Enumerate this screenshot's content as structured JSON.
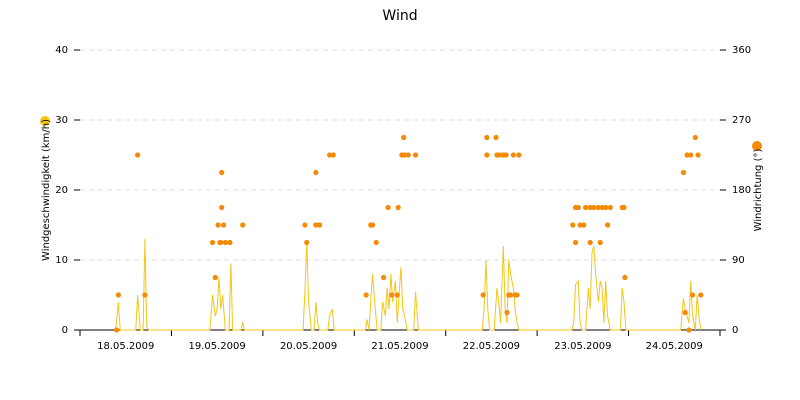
{
  "chart_data": {
    "type": "line-scatter",
    "title": "Wind",
    "xlim": [
      0,
      7
    ],
    "xticks": [
      {
        "value": 0.5,
        "label": "18.05.2009"
      },
      {
        "value": 1.5,
        "label": "19.05.2009"
      },
      {
        "value": 2.5,
        "label": "20.05.2009"
      },
      {
        "value": 3.5,
        "label": "21.05.2009"
      },
      {
        "value": 4.5,
        "label": "22.05.2009"
      },
      {
        "value": 5.5,
        "label": "23.05.2009"
      },
      {
        "value": 6.5,
        "label": "24.05.2009"
      }
    ],
    "xminorticks": [
      0,
      1,
      2,
      3,
      4,
      5,
      6,
      7
    ],
    "ylim": [
      0,
      40
    ],
    "yticks": [
      0,
      10,
      20,
      30,
      40
    ],
    "y2lim": [
      0,
      360
    ],
    "y2ticks": [
      0,
      90,
      180,
      270,
      360
    ],
    "grid": true,
    "series": [
      {
        "name": "Windgeschwindigkeit (km/h)",
        "type": "line",
        "color": "#f5c518",
        "x": [
          0.39,
          0.42,
          0.44,
          0.61,
          0.63,
          0.66,
          0.69,
          0.71,
          0.73,
          0.75,
          1.42,
          1.45,
          1.48,
          1.5,
          1.52,
          1.54,
          1.56,
          1.59,
          1.63,
          1.65,
          1.67,
          1.76,
          1.78,
          1.8,
          2.44,
          2.46,
          2.48,
          2.5,
          2.53,
          2.56,
          2.58,
          2.6,
          2.62,
          2.71,
          2.73,
          2.76,
          2.78,
          3.12,
          3.14,
          3.16,
          3.18,
          3.2,
          3.23,
          3.25,
          3.29,
          3.31,
          3.34,
          3.36,
          3.38,
          3.4,
          3.42,
          3.45,
          3.47,
          3.49,
          3.51,
          3.53,
          3.55,
          3.58,
          3.65,
          3.67,
          3.7,
          4.4,
          4.42,
          4.44,
          4.46,
          4.48,
          4.53,
          4.56,
          4.58,
          4.6,
          4.63,
          4.65,
          4.67,
          4.69,
          4.71,
          4.74,
          4.76,
          4.78,
          4.8,
          5.38,
          5.4,
          5.42,
          5.45,
          5.47,
          5.49,
          5.53,
          5.56,
          5.58,
          5.6,
          5.62,
          5.64,
          5.67,
          5.69,
          5.71,
          5.73,
          5.75,
          5.77,
          5.8,
          5.91,
          5.93,
          5.95,
          5.97,
          6.57,
          6.6,
          6.62,
          6.64,
          6.66,
          6.68,
          6.7,
          6.73,
          6.75,
          6.77,
          6.79
        ],
        "values": [
          0,
          4,
          0,
          0,
          5,
          0,
          0,
          13,
          0.5,
          0,
          0,
          5,
          2,
          3,
          7.5,
          3,
          5,
          0,
          0,
          9.5,
          0,
          0,
          1,
          0,
          0,
          5.5,
          12.5,
          4,
          0,
          0,
          4,
          1,
          0,
          0,
          2,
          3,
          0,
          0,
          1.5,
          0,
          4,
          8,
          3,
          0,
          0,
          4,
          2,
          6,
          3,
          8,
          4,
          7,
          1,
          5,
          9,
          3,
          2,
          0,
          0,
          5.5,
          0,
          0,
          3,
          10,
          3,
          0,
          0,
          6,
          4,
          1,
          12,
          3,
          1,
          10,
          8,
          6,
          3,
          1,
          0,
          0,
          1,
          6.5,
          7,
          1,
          0,
          0,
          6,
          3,
          11,
          12,
          8,
          4,
          7,
          6,
          1,
          7,
          2,
          0,
          0,
          6,
          4,
          0,
          0,
          4.5,
          3,
          2,
          1,
          7,
          2,
          0,
          5,
          2,
          0
        ]
      },
      {
        "name": "Windrichtung (°)",
        "type": "scatter",
        "axis": "y2",
        "color": "#f58a07",
        "x": [
          0.42,
          0.4,
          0.63,
          0.71,
          1.45,
          1.48,
          1.51,
          1.53,
          1.54,
          1.55,
          1.55,
          1.57,
          1.59,
          1.64,
          1.78,
          2.46,
          2.48,
          2.58,
          2.58,
          2.62,
          2.73,
          2.77,
          3.13,
          3.18,
          3.2,
          3.24,
          3.32,
          3.37,
          3.41,
          3.47,
          3.48,
          3.52,
          3.54,
          3.55,
          3.59,
          3.67,
          4.41,
          4.45,
          4.45,
          4.55,
          4.56,
          4.59,
          4.63,
          4.66,
          4.67,
          4.69,
          4.71,
          4.74,
          4.76,
          4.78,
          4.8,
          5.39,
          5.42,
          5.42,
          5.45,
          5.47,
          5.51,
          5.53,
          5.58,
          5.58,
          5.62,
          5.67,
          5.69,
          5.71,
          5.75,
          5.77,
          5.8,
          5.93,
          5.95,
          5.96,
          6.6,
          6.62,
          6.64,
          6.66,
          6.68,
          6.7,
          6.73,
          6.76,
          6.79
        ],
        "values": [
          45,
          0,
          225,
          45,
          112.5,
          67.5,
          135,
          112.5,
          112.5,
          157.5,
          202.5,
          135,
          112.5,
          112.5,
          135,
          135,
          112.5,
          202.5,
          135,
          135,
          225,
          225,
          45,
          135,
          135,
          112.5,
          67.5,
          157.5,
          45,
          45,
          157.5,
          225,
          247.5,
          225,
          225,
          225,
          45,
          225,
          247.5,
          247.5,
          225,
          225,
          225,
          225,
          22.5,
          45,
          45,
          225,
          45,
          45,
          225,
          135,
          157.5,
          112.5,
          157.5,
          135,
          135,
          157.5,
          112.5,
          157.5,
          157.5,
          157.5,
          112.5,
          157.5,
          157.5,
          135,
          157.5,
          157.5,
          157.5,
          67.5,
          202.5,
          22.5,
          225,
          0,
          225,
          45,
          247.5,
          225,
          45
        ]
      }
    ]
  }
}
